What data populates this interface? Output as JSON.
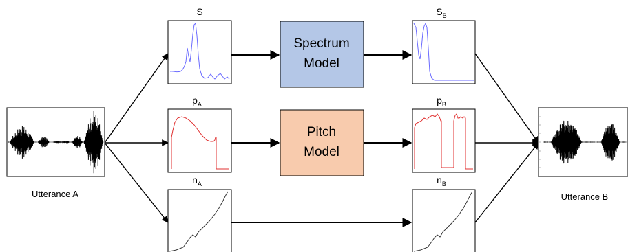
{
  "inputs": {
    "utterance_a": "Utterance A",
    "utterance_b": "Utterance B"
  },
  "signals": {
    "spectrum_in": {
      "main": "S",
      "sub": ""
    },
    "spectrum_out": {
      "main": "S",
      "sub": "B"
    },
    "pitch_in": {
      "main": "p",
      "sub": "A"
    },
    "pitch_out": {
      "main": "p",
      "sub": "B"
    },
    "noise_in": {
      "main": "n",
      "sub": "A"
    },
    "noise_out": {
      "main": "n",
      "sub": "B"
    }
  },
  "models": {
    "spectrum": {
      "line1": "Spectrum",
      "line2": "Model",
      "color": "#b4c7e7"
    },
    "pitch": {
      "line1": "Pitch",
      "line2": "Model",
      "color": "#f8cbad"
    }
  },
  "colors": {
    "spectrum_trace": "#6a6aff",
    "pitch_trace": "#e03030",
    "noise_trace": "#222222",
    "waveform": "#000000"
  }
}
